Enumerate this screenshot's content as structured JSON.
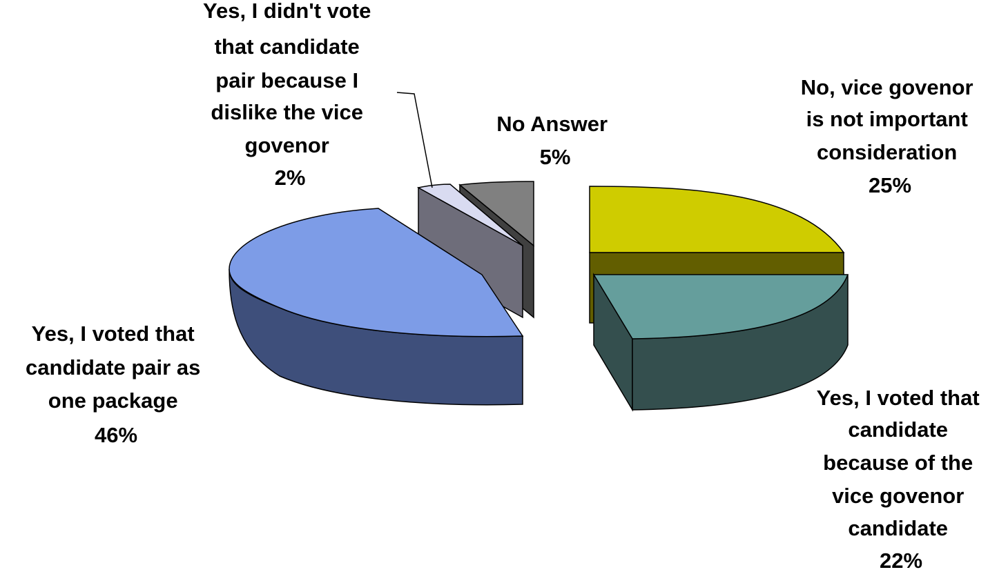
{
  "chart_data": {
    "type": "pie",
    "style": "3d-exploded",
    "slices": [
      {
        "label_lines": [
          "No, vice govenor",
          "is not important",
          "consideration"
        ],
        "percent_label": "25%",
        "value": 25,
        "color_top": "#cfcc00",
        "color_side": "#625e00"
      },
      {
        "label_lines": [
          "Yes, I voted that",
          "candidate",
          "because of the",
          "vice govenor",
          "candidate"
        ],
        "percent_label": "22%",
        "value": 22,
        "color_top": "#659e9c",
        "color_side": "#344f4e"
      },
      {
        "label_lines": [
          "Yes, I voted that",
          "candidate pair as",
          "one package"
        ],
        "percent_label": "46%",
        "value": 46,
        "color_top": "#7d9ce7",
        "color_side": "#3e4f7b"
      },
      {
        "label_lines": [
          "Yes, I didn't vote",
          "that candidate",
          "pair because I",
          "dislike the vice",
          "govenor"
        ],
        "percent_label": "2%",
        "value": 2,
        "color_top": "#d9dbf1",
        "color_side": "#6e6d7a"
      },
      {
        "label_lines": [
          "No Answer"
        ],
        "percent_label": "5%",
        "value": 5,
        "color_top": "#808080",
        "color_side": "#404040"
      }
    ]
  }
}
